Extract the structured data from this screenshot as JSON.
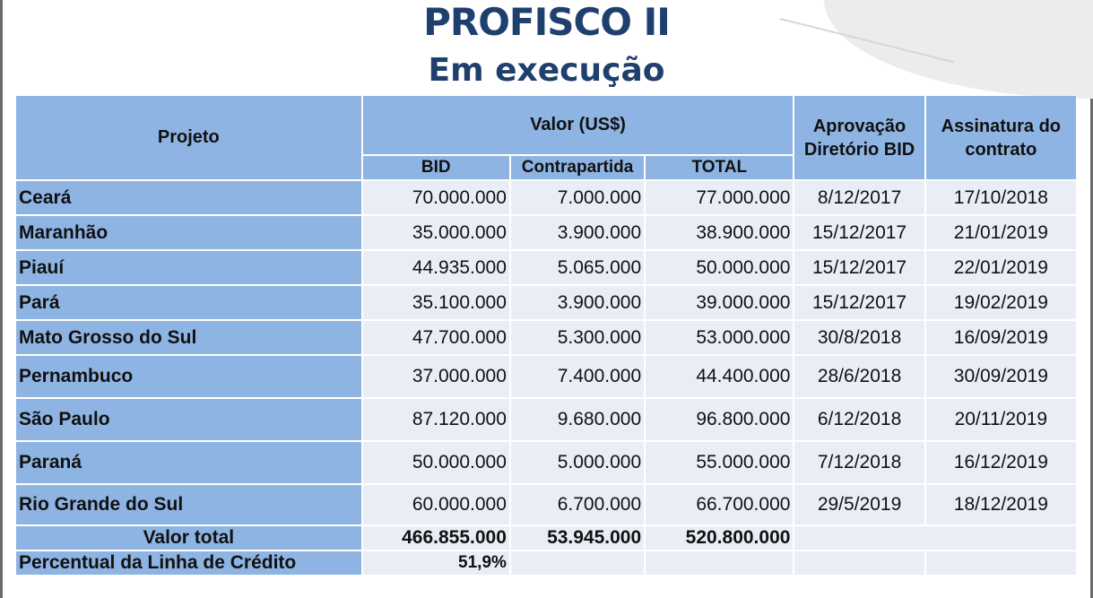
{
  "title": "PROFISCO II",
  "subtitle": "Em execução",
  "headers": {
    "projeto": "Projeto",
    "valor": "Valor (US$)",
    "bid": "BID",
    "contrapartida": "Contrapartida",
    "total": "TOTAL",
    "aprovacao": "Aprovação Diretório BID",
    "assinatura": "Assinatura do contrato"
  },
  "rows": [
    {
      "projeto": "Ceará",
      "bid": "70.000.000",
      "contrapartida": "7.000.000",
      "total": "77.000.000",
      "aprovacao": "8/12/2017",
      "assinatura": "17/10/2018"
    },
    {
      "projeto": "Maranhão",
      "bid": "35.000.000",
      "contrapartida": "3.900.000",
      "total": "38.900.000",
      "aprovacao": "15/12/2017",
      "assinatura": "21/01/2019"
    },
    {
      "projeto": "Piauí",
      "bid": "44.935.000",
      "contrapartida": "5.065.000",
      "total": "50.000.000",
      "aprovacao": "15/12/2017",
      "assinatura": "22/01/2019"
    },
    {
      "projeto": "Pará",
      "bid": "35.100.000",
      "contrapartida": "3.900.000",
      "total": "39.000.000",
      "aprovacao": "15/12/2017",
      "assinatura": "19/02/2019"
    },
    {
      "projeto": "Mato Grosso do Sul",
      "bid": "47.700.000",
      "contrapartida": "5.300.000",
      "total": "53.000.000",
      "aprovacao": "30/8/2018",
      "assinatura": "16/09/2019"
    },
    {
      "projeto": "Pernambuco",
      "bid": "37.000.000",
      "contrapartida": "7.400.000",
      "total": "44.400.000",
      "aprovacao": "28/6/2018",
      "assinatura": "30/09/2019"
    },
    {
      "projeto": "São Paulo",
      "bid": "87.120.000",
      "contrapartida": "9.680.000",
      "total": "96.800.000",
      "aprovacao": "6/12/2018",
      "assinatura": "20/11/2019"
    },
    {
      "projeto": "Paraná",
      "bid": "50.000.000",
      "contrapartida": "5.000.000",
      "total": "55.000.000",
      "aprovacao": "7/12/2018",
      "assinatura": "16/12/2019"
    },
    {
      "projeto": "Rio Grande do Sul",
      "bid": "60.000.000",
      "contrapartida": "6.700.000",
      "total": "66.700.000",
      "aprovacao": "29/5/2019",
      "assinatura": "18/12/2019"
    }
  ],
  "totals": {
    "label": "Valor total",
    "bid": "466.855.000",
    "contrapartida": "53.945.000",
    "total": "520.800.000"
  },
  "percentual": {
    "label": "Percentual da Linha de Crédito",
    "value": "51,9%"
  },
  "colors": {
    "header_bg": "#8eb4e3",
    "cell_bg": "#e9eef6",
    "title": "#1f3f6e"
  }
}
